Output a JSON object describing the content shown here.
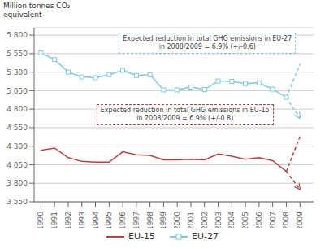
{
  "chart_data": {
    "type": "line",
    "ylabel": [
      "Million tonnes CO₂",
      "equivalent"
    ],
    "x": [
      1990,
      1991,
      1992,
      1993,
      1994,
      1995,
      1996,
      1997,
      1998,
      1999,
      2000,
      2001,
      2002,
      2003,
      2004,
      2005,
      2006,
      2007,
      2008
    ],
    "xlim": [
      1989.5,
      2010.0
    ],
    "xticks": [
      1990,
      1991,
      1992,
      1993,
      1994,
      1995,
      1996,
      1997,
      1998,
      1999,
      2000,
      2001,
      2002,
      2003,
      2004,
      2005,
      2006,
      2007,
      2008,
      2009
    ],
    "ylim": [
      3550,
      5900
    ],
    "yticks": [
      {
        "value": 3550,
        "label": "3 550"
      },
      {
        "value": 3800,
        "label": "3 800"
      },
      {
        "value": 4050,
        "label": "4 050"
      },
      {
        "value": 4300,
        "label": "4 300"
      },
      {
        "value": 4550,
        "label": "4 550"
      },
      {
        "value": 4800,
        "label": "4 800"
      },
      {
        "value": 5050,
        "label": "5 050"
      },
      {
        "value": 5300,
        "label": "5 300"
      },
      {
        "value": 5550,
        "label": "5 550"
      },
      {
        "value": 5800,
        "label": "5 800"
      }
    ],
    "grid": "y",
    "legend": "bottom",
    "series": [
      {
        "name": "EU-27",
        "color": "#7ec8e3",
        "marker": "square",
        "values": [
          5560,
          5470,
          5300,
          5235,
          5225,
          5265,
          5325,
          5255,
          5265,
          5060,
          5060,
          5100,
          5065,
          5180,
          5175,
          5145,
          5155,
          5070,
          4960
        ],
        "projection": {
          "x": 2009,
          "high": 5410,
          "low": 4680,
          "line_style": "dashed"
        }
      },
      {
        "name": "EU-15",
        "color": "#b94040",
        "marker": "none",
        "values": [
          4245,
          4275,
          4145,
          4095,
          4085,
          4085,
          4225,
          4185,
          4175,
          4115,
          4115,
          4125,
          4115,
          4195,
          4165,
          4125,
          4145,
          4105,
          3960
        ],
        "projection": {
          "x": 2009,
          "high": 4430,
          "low": 3720,
          "line_style": "dashed"
        }
      }
    ],
    "annotations": [
      {
        "text": "Expected reduction in total GHG emissions in EU-27\nin 2008/2009 = 6.9% (+/-0.6)",
        "color": "#7ec8e3"
      },
      {
        "text": "Expected reduction in total GHG emissions in EU-15\nin 2008/2009 = 6.9% (+/-0.8)",
        "color": "#b94040"
      }
    ]
  }
}
